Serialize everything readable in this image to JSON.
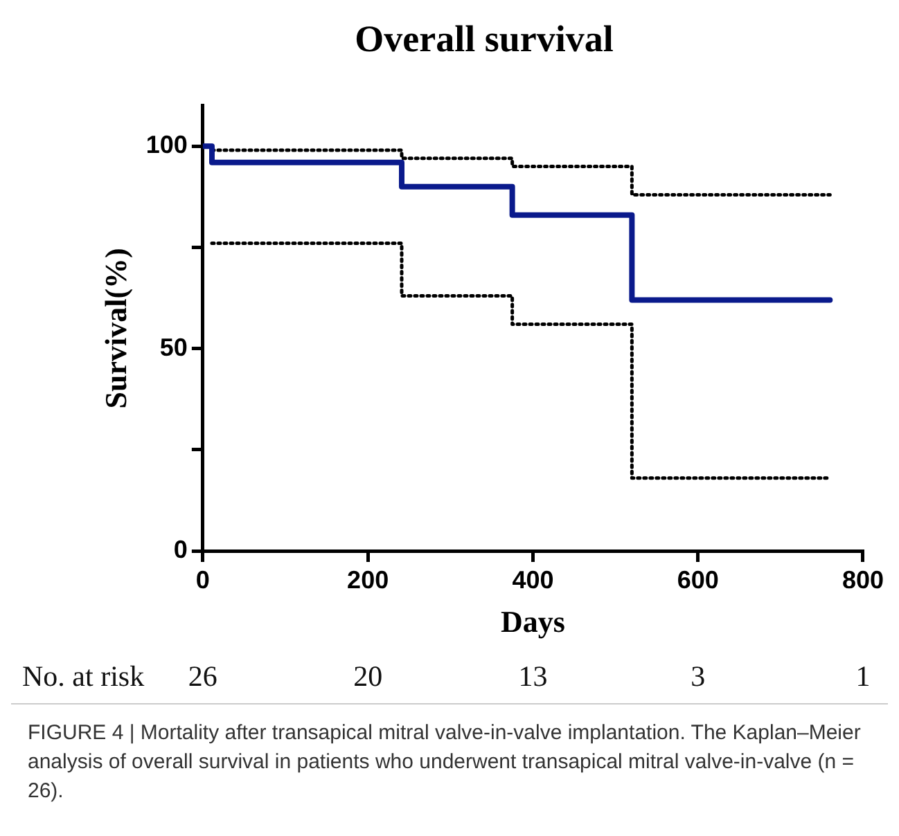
{
  "chart_data": {
    "type": "step",
    "title": "Overall survival",
    "xlabel": "Days",
    "ylabel": "Survival(%)",
    "xlim": [
      0,
      800
    ],
    "xticks": [
      0,
      200,
      400,
      600,
      800
    ],
    "ylim": [
      0,
      110
    ],
    "yticks": [
      0,
      {
        "value": 25,
        "label": null
      },
      50,
      {
        "value": 75,
        "label": null
      },
      100
    ],
    "grid": false,
    "legend": false,
    "series": [
      {
        "color": "#0a1a8c",
        "line_style": "solid",
        "x": [
          0,
          11,
          241,
          375,
          520,
          760
        ],
        "values": [
          100,
          96,
          90,
          83,
          62,
          62
        ]
      },
      {
        "color": "#000000",
        "line_style": "dotted",
        "x": [
          11,
          241,
          375,
          520,
          760
        ],
        "values": [
          99,
          97,
          95,
          88,
          88
        ]
      },
      {
        "color": "#000000",
        "line_style": "dotted",
        "x": [
          11,
          241,
          375,
          520,
          760
        ],
        "values": [
          76,
          63,
          56,
          18,
          18
        ]
      }
    ],
    "annotations": [
      "No. at risk",
      "26",
      "20",
      "13",
      "3",
      "1",
      "FIGURE 4 | Mortality after transapical mitral valve-in-valve implantation. The Kaplan–Meier analysis of overall survival in patients who underwent transapical mitral valve-in-valve (n = 26)."
    ]
  }
}
